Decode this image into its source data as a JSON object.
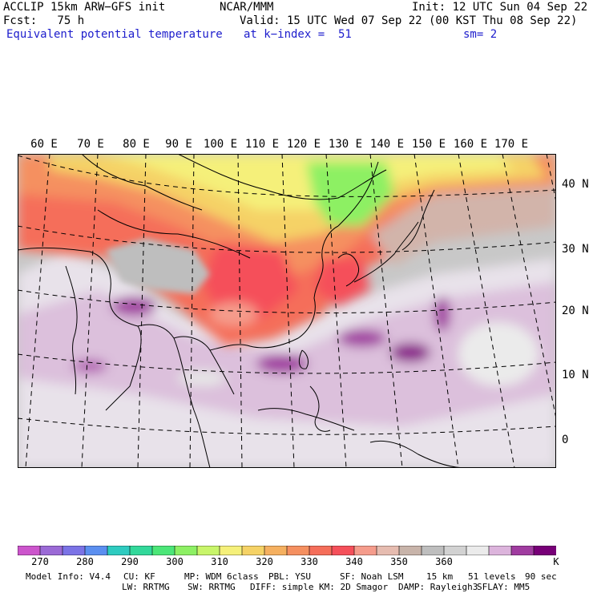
{
  "header": {
    "model_line": "ACCLIP 15km ARW−GFS init",
    "org": "NCAR/MMM",
    "init": "Init: 12 UTC Sun 04 Sep 22",
    "fcst": "Fcst:   75 h",
    "valid": "Valid: 15 UTC Wed 07 Sep 22 (00 KST Thu 08 Sep 22)",
    "field": "Equivalent potential temperature",
    "level": "at k−index =  51",
    "smooth": "sm= 2"
  },
  "map": {
    "lon_labels": [
      "60 E",
      "70 E",
      "80 E",
      "90 E",
      "100 E",
      "110 E",
      "120 E",
      "130 E",
      "140 E",
      "150 E",
      "160 E",
      "170 E"
    ],
    "lat_labels": [
      "40 N",
      "30 N",
      "20 N",
      "10 N",
      "0"
    ],
    "colors": {
      "land_outline": "#000000",
      "grid": "#000000",
      "ocean_bg": "#c8c8c8"
    }
  },
  "colorbar": {
    "colors": [
      "#cc55cc",
      "#9b6ad6",
      "#7b73e6",
      "#5b8ff0",
      "#2ecbc0",
      "#32d89a",
      "#4ce678",
      "#8df064",
      "#c8f56a",
      "#f5f07a",
      "#f5d266",
      "#f5b060",
      "#f59060",
      "#f56e5a",
      "#f5505a",
      "#f59c8c",
      "#e6bcb0",
      "#c8b4aa",
      "#bebebe",
      "#d2d2d2",
      "#ebebeb",
      "#dcb4dc",
      "#a03ca0",
      "#780078"
    ],
    "labels": [
      "270",
      "280",
      "290",
      "300",
      "310",
      "320",
      "330",
      "340",
      "350",
      "360"
    ],
    "unit": "K"
  },
  "footer": {
    "line1": [
      "Model Info: V4.4",
      "CU: KF",
      "MP: WDM 6class",
      "PBL: YSU",
      "SF: Noah LSM",
      "15 km",
      "51 levels",
      "90 sec"
    ],
    "line2": [
      "LW: RRTMG",
      "SW: RRTMG",
      "DIFF: simple",
      "KM: 2D Smagor",
      "DAMP: Rayleigh3",
      "SFLAY: MM5"
    ]
  }
}
